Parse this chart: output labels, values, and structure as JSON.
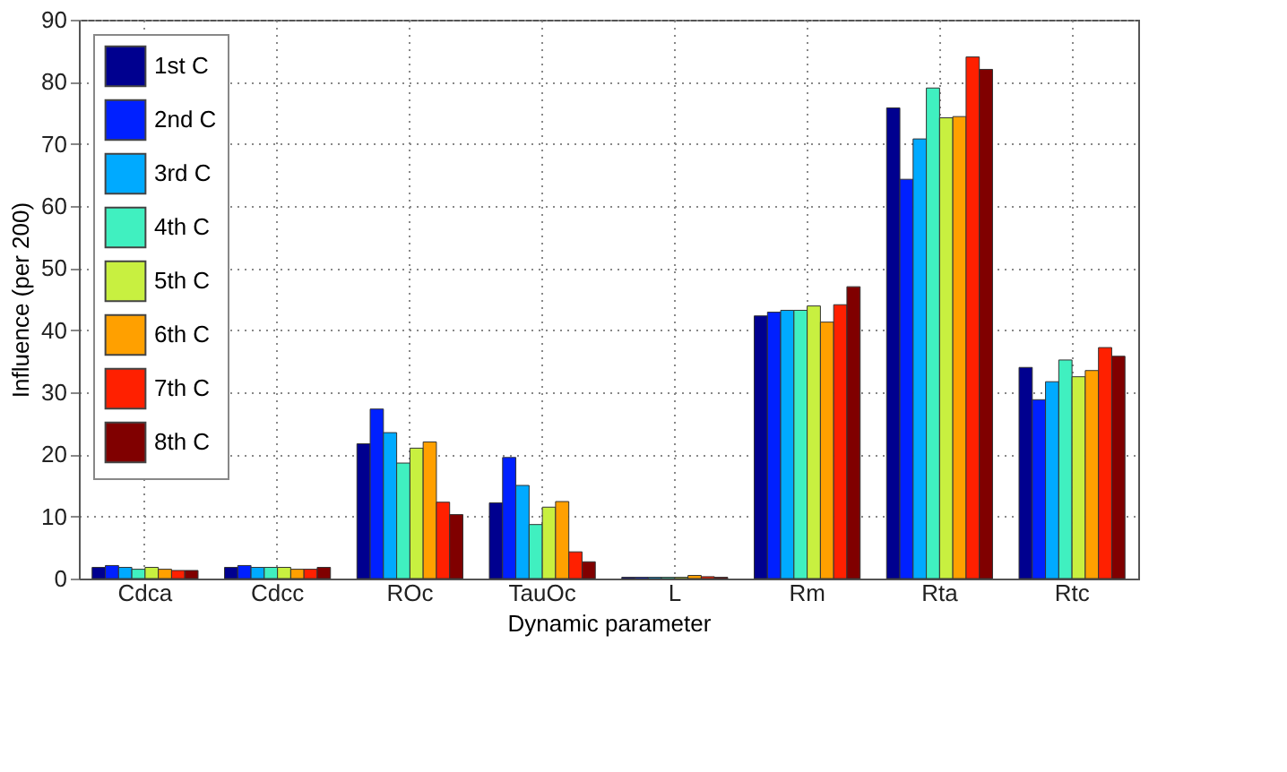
{
  "chart_data": {
    "type": "bar",
    "xlabel": "Dynamic parameter",
    "ylabel": "Influence (per 200)",
    "categories": [
      "Cdca",
      "Cdcc",
      "ROc",
      "TauOc",
      "L",
      "Rm",
      "Rta",
      "Rtc"
    ],
    "series": [
      {
        "name": "1st C",
        "color": "#00008f",
        "values": [
          1.8,
          1.8,
          21.7,
          12.2,
          0.2,
          42.3,
          75.8,
          34
        ]
      },
      {
        "name": "2nd C",
        "color": "#0020ff",
        "values": [
          2.1,
          2.1,
          27.3,
          19.5,
          0.2,
          42.9,
          64.3,
          28.8
        ]
      },
      {
        "name": "3rd C",
        "color": "#00aaff",
        "values": [
          1.8,
          1.8,
          23.5,
          15,
          0.2,
          43.2,
          70.8,
          31.7
        ]
      },
      {
        "name": "4th C",
        "color": "#40f0c0",
        "values": [
          1.5,
          1.8,
          18.6,
          8.7,
          0.2,
          43.2,
          79,
          35.2
        ]
      },
      {
        "name": "5th C",
        "color": "#c8f040",
        "values": [
          1.8,
          1.8,
          21,
          11.5,
          0.2,
          43.9,
          74.2,
          32.5
        ]
      },
      {
        "name": "6th C",
        "color": "#ffa000",
        "values": [
          1.5,
          1.5,
          22,
          12.4,
          0.5,
          41.3,
          74.4,
          33.5
        ]
      },
      {
        "name": "7th C",
        "color": "#ff2000",
        "values": [
          1.3,
          1.5,
          12.3,
          4.3,
          0.3,
          44.1,
          84,
          37.2
        ]
      },
      {
        "name": "8th C",
        "color": "#800000",
        "values": [
          1.3,
          1.8,
          10.3,
          2.7,
          0.2,
          47,
          82,
          35.8
        ]
      }
    ],
    "ylim": [
      0,
      90
    ],
    "yticks": [
      0,
      10,
      20,
      30,
      40,
      50,
      60,
      70,
      80,
      90
    ],
    "grid": true,
    "legend": "top left"
  }
}
